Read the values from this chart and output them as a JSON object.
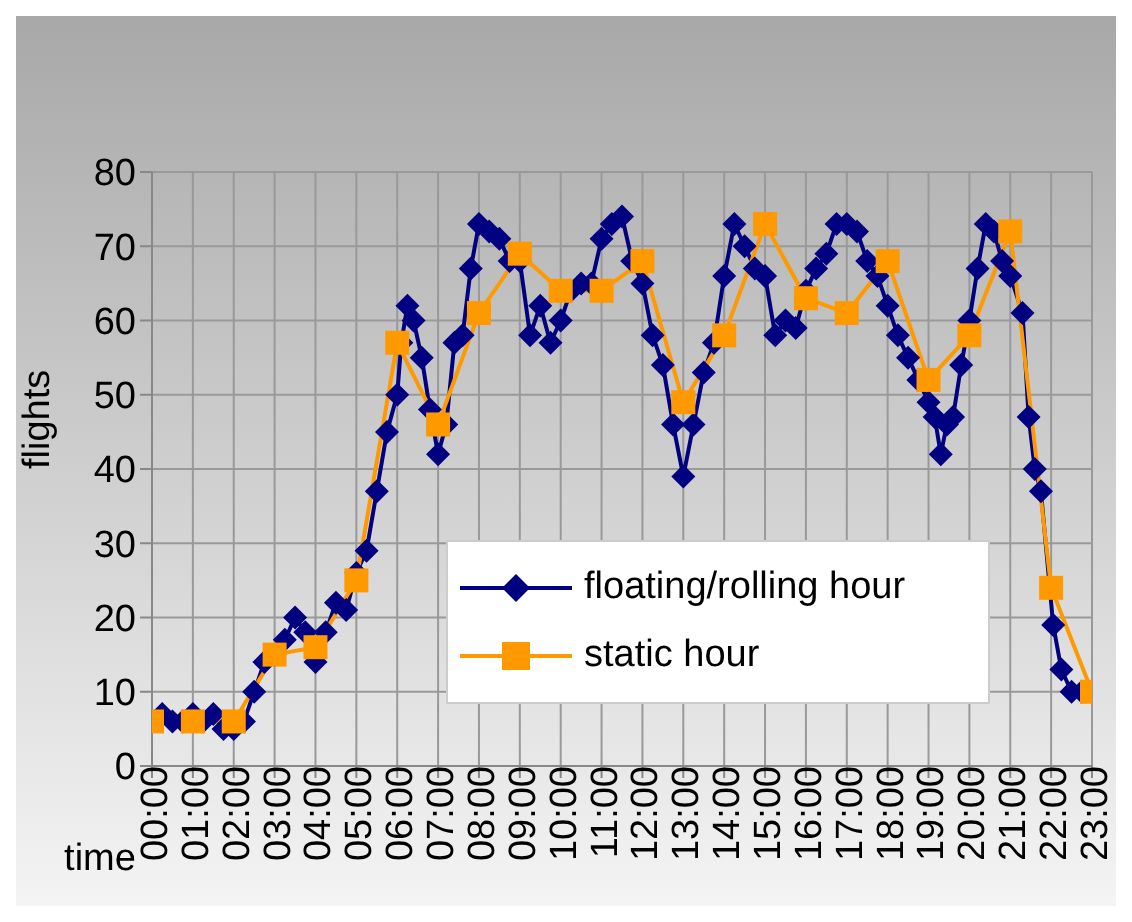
{
  "chart_data": {
    "type": "line",
    "xlabel": "time",
    "ylabel": "flights",
    "xlim": [
      0,
      23
    ],
    "xticks": [
      {
        "value": 0,
        "label": "00:00"
      },
      {
        "value": 1,
        "label": "01:00"
      },
      {
        "value": 2,
        "label": "02:00"
      },
      {
        "value": 3,
        "label": "03:00"
      },
      {
        "value": 4,
        "label": "04:00"
      },
      {
        "value": 5,
        "label": "05:00"
      },
      {
        "value": 6,
        "label": "06:00"
      },
      {
        "value": 7,
        "label": "07:00"
      },
      {
        "value": 8,
        "label": "08:00"
      },
      {
        "value": 9,
        "label": "09:00"
      },
      {
        "value": 10,
        "label": "10:00"
      },
      {
        "value": 11,
        "label": "11:00"
      },
      {
        "value": 12,
        "label": "12:00"
      },
      {
        "value": 13,
        "label": "13:00"
      },
      {
        "value": 14,
        "label": "14:00"
      },
      {
        "value": 15,
        "label": "15:00"
      },
      {
        "value": 16,
        "label": "16:00"
      },
      {
        "value": 17,
        "label": "17:00"
      },
      {
        "value": 18,
        "label": "18:00"
      },
      {
        "value": 19,
        "label": "19:00"
      },
      {
        "value": 20,
        "label": "20:00"
      },
      {
        "value": 21,
        "label": "21:00"
      },
      {
        "value": 22,
        "label": "22:00"
      },
      {
        "value": 23,
        "label": "23:00"
      }
    ],
    "ylim": [
      0,
      80
    ],
    "yticks": [
      0,
      10,
      20,
      30,
      40,
      50,
      60,
      70,
      80
    ],
    "grid": true,
    "legend": "bottom right",
    "series": [
      {
        "name": "floating/rolling hour",
        "color": "#000080",
        "marker": "diamond",
        "x": [
          0,
          0.25,
          0.5,
          0.75,
          1,
          1.25,
          1.5,
          1.75,
          2,
          2.25,
          2.5,
          2.75,
          3,
          3.25,
          3.5,
          3.75,
          4,
          4.25,
          4.5,
          4.75,
          5,
          5.25,
          5.5,
          5.75,
          6,
          6.1,
          6.25,
          6.4,
          6.6,
          6.8,
          7,
          7.2,
          7.4,
          7.6,
          7.8,
          8,
          8.25,
          8.5,
          8.75,
          9,
          9.25,
          9.5,
          9.75,
          10,
          10.25,
          10.5,
          10.75,
          11,
          11.25,
          11.5,
          11.75,
          12,
          12.25,
          12.5,
          12.75,
          13,
          13.25,
          13.5,
          13.75,
          14,
          14.25,
          14.5,
          14.75,
          15,
          15.25,
          15.5,
          15.75,
          16,
          16.25,
          16.5,
          16.75,
          17,
          17.25,
          17.5,
          17.75,
          18,
          18.25,
          18.5,
          18.75,
          19,
          19.15,
          19.3,
          19.45,
          19.6,
          19.8,
          20,
          20.2,
          20.4,
          20.6,
          20.8,
          21,
          21.3,
          21.45,
          21.6,
          21.75,
          22.05,
          22.25,
          22.5,
          22.75
        ],
        "values": [
          6,
          7,
          6,
          6,
          7,
          6,
          7,
          5,
          5,
          6,
          10,
          14,
          15,
          17,
          20,
          18,
          14,
          18,
          22,
          21,
          26,
          29,
          37,
          45,
          50,
          57,
          62,
          60,
          55,
          48,
          42,
          46,
          57,
          58,
          67,
          73,
          72,
          71,
          68,
          68,
          58,
          62,
          57,
          60,
          64,
          65,
          65,
          71,
          73,
          74,
          68,
          65,
          58,
          54,
          46,
          39,
          46,
          53,
          57,
          66,
          73,
          70,
          67,
          66,
          58,
          60,
          59,
          64,
          67,
          69,
          73,
          73,
          72,
          68,
          66,
          62,
          58,
          55,
          52,
          49,
          47,
          42,
          46,
          47,
          54,
          60,
          67,
          73,
          72,
          68,
          66,
          61,
          47,
          40,
          37,
          19,
          13,
          10,
          10
        ]
      },
      {
        "name": "static hour",
        "color": "#ff9900",
        "marker": "square",
        "x": [
          0,
          1,
          2,
          3,
          4,
          5,
          6,
          7,
          8,
          9,
          10,
          11,
          12,
          13,
          14,
          15,
          16,
          17,
          18,
          19,
          20,
          21,
          22,
          23
        ],
        "values": [
          6,
          6,
          6,
          15,
          16,
          25,
          57,
          46,
          61,
          69,
          64,
          64,
          68,
          49,
          58,
          73,
          63,
          61,
          68,
          52,
          58,
          72,
          24,
          10
        ]
      }
    ]
  }
}
